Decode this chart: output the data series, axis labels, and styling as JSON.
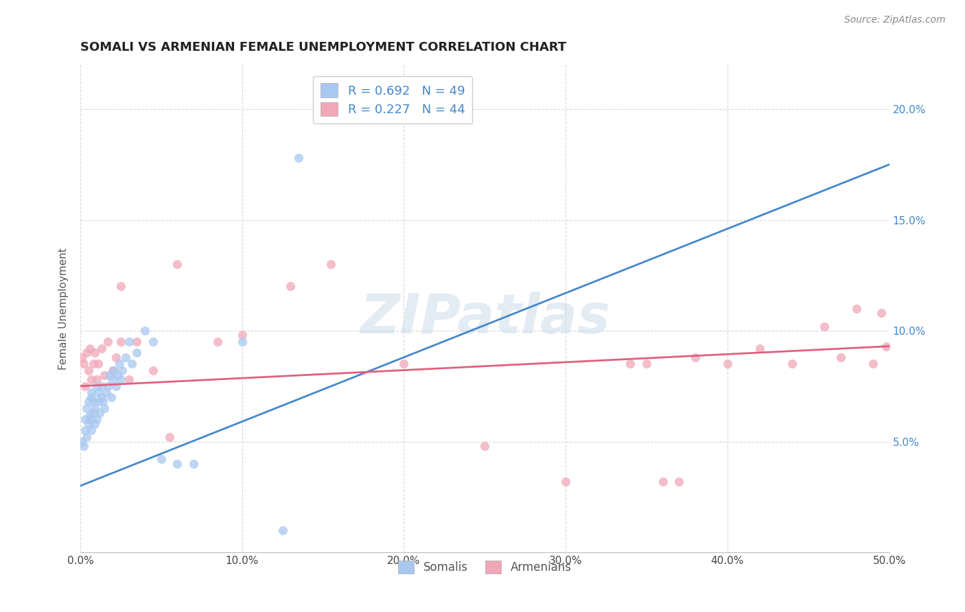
{
  "title": "SOMALI VS ARMENIAN FEMALE UNEMPLOYMENT CORRELATION CHART",
  "source": "Source: ZipAtlas.com",
  "ylabel": "Female Unemployment",
  "xlim": [
    0.0,
    0.5
  ],
  "ylim": [
    0.0,
    0.22
  ],
  "xticks": [
    0.0,
    0.1,
    0.2,
    0.3,
    0.4,
    0.5
  ],
  "xtick_labels": [
    "0.0%",
    "10.0%",
    "20.0%",
    "30.0%",
    "40.0%",
    "50.0%"
  ],
  "yticks": [
    0.05,
    0.1,
    0.15,
    0.2
  ],
  "ytick_labels": [
    "5.0%",
    "10.0%",
    "15.0%",
    "20.0%"
  ],
  "background_color": "#ffffff",
  "grid_color": "#d8d8d8",
  "somali_color": "#a8c8f0",
  "armenian_color": "#f0a8b8",
  "somali_line_color": "#4488cc",
  "armenian_line_color": "#e06080",
  "R_somali": 0.692,
  "N_somali": 49,
  "R_armenian": 0.227,
  "N_armenian": 44,
  "watermark": "ZIPatlas",
  "somali_line": [
    0.0,
    0.03,
    0.5,
    0.175
  ],
  "armenian_line": [
    0.0,
    0.075,
    0.5,
    0.093
  ],
  "somali_x": [
    0.001,
    0.002,
    0.003,
    0.003,
    0.004,
    0.004,
    0.005,
    0.005,
    0.006,
    0.006,
    0.007,
    0.007,
    0.007,
    0.008,
    0.008,
    0.009,
    0.009,
    0.01,
    0.01,
    0.011,
    0.011,
    0.012,
    0.013,
    0.013,
    0.014,
    0.015,
    0.016,
    0.017,
    0.018,
    0.019,
    0.02,
    0.021,
    0.022,
    0.023,
    0.024,
    0.025,
    0.026,
    0.028,
    0.03,
    0.032,
    0.035,
    0.04,
    0.045,
    0.05,
    0.06,
    0.07,
    0.1,
    0.125,
    0.135
  ],
  "somali_y": [
    0.05,
    0.048,
    0.055,
    0.06,
    0.052,
    0.065,
    0.058,
    0.068,
    0.06,
    0.062,
    0.055,
    0.07,
    0.072,
    0.063,
    0.068,
    0.058,
    0.065,
    0.06,
    0.075,
    0.068,
    0.072,
    0.063,
    0.07,
    0.075,
    0.068,
    0.065,
    0.072,
    0.075,
    0.08,
    0.07,
    0.078,
    0.082,
    0.075,
    0.08,
    0.085,
    0.078,
    0.082,
    0.088,
    0.095,
    0.085,
    0.09,
    0.1,
    0.095,
    0.042,
    0.04,
    0.04,
    0.095,
    0.01,
    0.178
  ],
  "armenian_x": [
    0.001,
    0.002,
    0.003,
    0.004,
    0.005,
    0.006,
    0.007,
    0.008,
    0.009,
    0.01,
    0.011,
    0.013,
    0.015,
    0.017,
    0.02,
    0.022,
    0.025,
    0.03,
    0.035,
    0.045,
    0.06,
    0.085,
    0.1,
    0.13,
    0.155,
    0.2,
    0.25,
    0.3,
    0.34,
    0.36,
    0.38,
    0.4,
    0.42,
    0.44,
    0.46,
    0.47,
    0.48,
    0.49,
    0.495,
    0.498,
    0.35,
    0.37,
    0.025,
    0.055
  ],
  "armenian_y": [
    0.088,
    0.085,
    0.075,
    0.09,
    0.082,
    0.092,
    0.078,
    0.085,
    0.09,
    0.078,
    0.085,
    0.092,
    0.08,
    0.095,
    0.082,
    0.088,
    0.095,
    0.078,
    0.095,
    0.082,
    0.13,
    0.095,
    0.098,
    0.12,
    0.13,
    0.085,
    0.048,
    0.032,
    0.085,
    0.032,
    0.088,
    0.085,
    0.092,
    0.085,
    0.102,
    0.088,
    0.11,
    0.085,
    0.108,
    0.093,
    0.085,
    0.032,
    0.12,
    0.052
  ]
}
